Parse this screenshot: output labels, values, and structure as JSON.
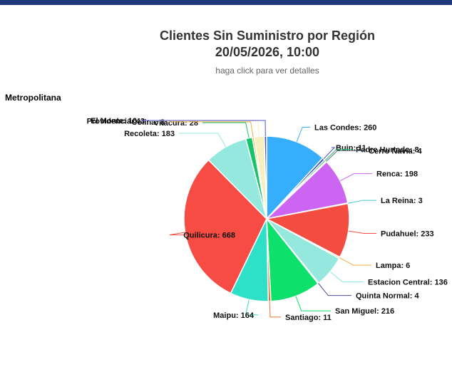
{
  "header": {
    "title_line1": "Clientes Sin Suministro por Región",
    "title_line2": "20/05/2026, 10:00",
    "subtitle": "haga click para ver detalles"
  },
  "region_label": "Metropolitana",
  "chart_data": {
    "type": "pie",
    "title": "Clientes Sin Suministro por Región 20/05/2026, 10:00",
    "slices": [
      {
        "label": "Las Condes",
        "value": 260,
        "color": "#36aefb"
      },
      {
        "label": "Buin",
        "value": 11,
        "color": "#3f4fbf"
      },
      {
        "label": "Padre Hurtado",
        "value": 8,
        "color": "#22bb66"
      },
      {
        "label": "Cerro Navia",
        "value": 4,
        "color": "#556677"
      },
      {
        "label": "Renca",
        "value": 198,
        "color": "#cc66f2"
      },
      {
        "label": "La Reina",
        "value": 3,
        "color": "#44cccc"
      },
      {
        "label": "Pudahuel",
        "value": 233,
        "color": "#f34c40"
      },
      {
        "label": "Lampa",
        "value": 6,
        "color": "#f0b040"
      },
      {
        "label": "Estacion Central",
        "value": 136,
        "color": "#94e8de"
      },
      {
        "label": "Quinta Normal",
        "value": 4,
        "color": "#4d4d99"
      },
      {
        "label": "San Miguel",
        "value": 216,
        "color": "#0ee06c"
      },
      {
        "label": "Santiago",
        "value": 11,
        "color": "#f07030"
      },
      {
        "label": "Maipu",
        "value": 164,
        "color": "#2ee0c8"
      },
      {
        "label": "Quilicura",
        "value": 668,
        "color": "#f74c44"
      },
      {
        "label": "Recoleta",
        "value": 183,
        "color": "#94e8de"
      },
      {
        "label": "Vitacura",
        "value": 28,
        "color": "#16c46a"
      },
      {
        "label": "Colina",
        "value": 8,
        "color": "#f0b040"
      },
      {
        "label": "Providencia",
        "value": 43,
        "color": "#f6f0c0"
      },
      {
        "label": "El Monte",
        "value": 10,
        "color": "#5050d0"
      }
    ]
  }
}
